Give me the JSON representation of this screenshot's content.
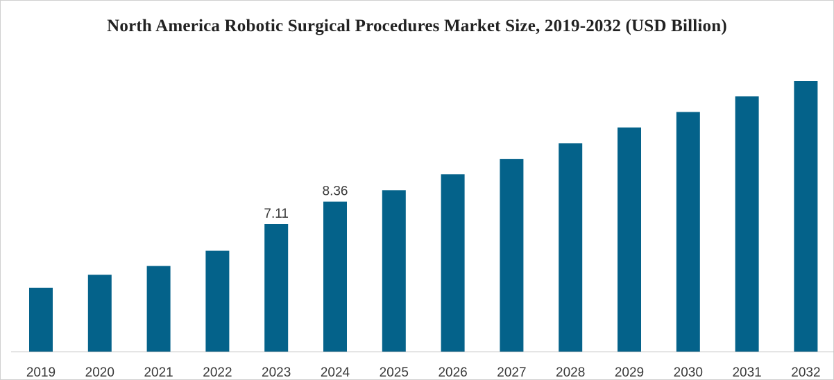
{
  "chart_data": {
    "type": "bar",
    "title": "North America Robotic Surgical Procedures Market Size, 2019-2032 (USD Billion)",
    "xlabel": "",
    "ylabel": "",
    "categories": [
      "2019",
      "2020",
      "2021",
      "2022",
      "2023",
      "2024",
      "2025",
      "2026",
      "2027",
      "2028",
      "2029",
      "2030",
      "2031",
      "2032"
    ],
    "series": [
      {
        "name": "Market Size (USD Billion)",
        "values": [
          3.56,
          4.28,
          4.77,
          5.62,
          7.11,
          8.36,
          8.99,
          9.88,
          10.74,
          11.61,
          12.49,
          13.35,
          14.22,
          15.07
        ]
      }
    ],
    "data_labels": [
      {
        "category": "2023",
        "text": "7.11"
      },
      {
        "category": "2024",
        "text": "8.36"
      }
    ],
    "ylim": [
      0,
      16.5
    ],
    "grid": false,
    "legend": "none",
    "bar_color": "#04628a",
    "axis_color": "#bfbfbf"
  }
}
